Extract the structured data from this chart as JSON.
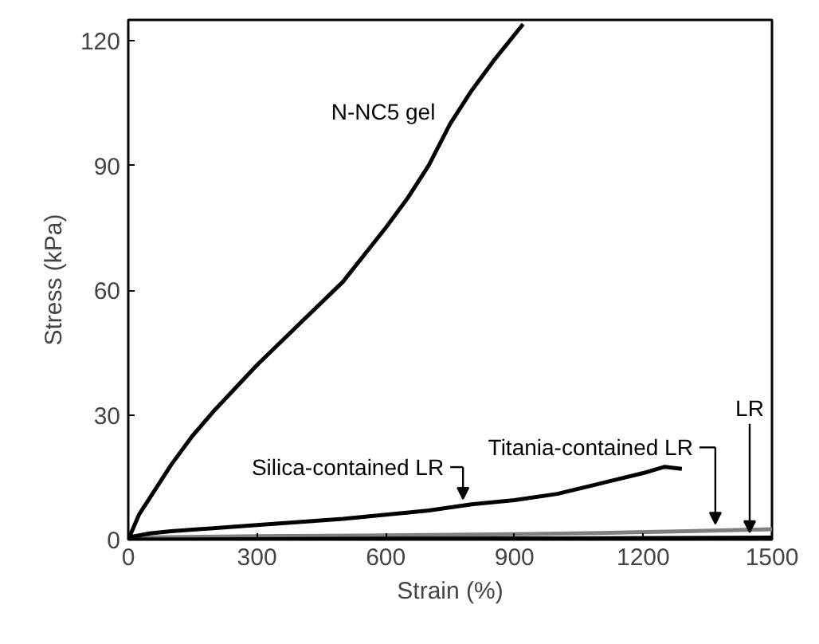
{
  "chart_data": {
    "type": "line",
    "xlabel": "Strain (%)",
    "ylabel": "Stress (kPa)",
    "xlim": [
      0,
      1500
    ],
    "ylim": [
      0,
      125
    ],
    "xticks": [
      0,
      300,
      600,
      900,
      1200,
      1500
    ],
    "yticks": [
      0,
      30,
      60,
      90,
      120
    ],
    "grid": false,
    "line_style": "solid",
    "marker": "none",
    "series": [
      {
        "color": "#000000",
        "x": [
          0,
          25,
          50,
          100,
          150,
          200,
          300,
          400,
          500,
          600,
          650,
          700,
          750,
          800,
          850,
          920
        ],
        "values": [
          0,
          6,
          10,
          18,
          25,
          31,
          42,
          52,
          62,
          75,
          82,
          90,
          100,
          108,
          115,
          124
        ]
      },
      {
        "color": "#808080",
        "x": [
          0,
          300,
          600,
          900,
          1100,
          1300,
          1500
        ],
        "values": [
          0.5,
          0.8,
          1,
          1.3,
          1.6,
          2,
          2.5
        ]
      },
      {
        "color": "#000000",
        "x": [
          0,
          50,
          100,
          300,
          500,
          700,
          800,
          900,
          1000,
          1100,
          1200,
          1250,
          1290
        ],
        "values": [
          0.5,
          1.5,
          2,
          3.5,
          5,
          7,
          8.5,
          9.5,
          11,
          13.5,
          16,
          17.5,
          17
        ]
      },
      {
        "color": "#000000",
        "x": [
          0,
          500,
          1000,
          1500
        ],
        "values": [
          0,
          0.2,
          0.3,
          0.5
        ]
      }
    ],
    "annotations": [
      {
        "text": "N-NC5 gel",
        "x": 760,
        "y": 103
      },
      {
        "text": "Silica-contained LR",
        "x": 780,
        "y": 9
      },
      {
        "text": "Titania-contained LR",
        "x": 1368,
        "y": 3
      },
      {
        "text": "LR",
        "x": 1448,
        "y": 1
      }
    ]
  }
}
